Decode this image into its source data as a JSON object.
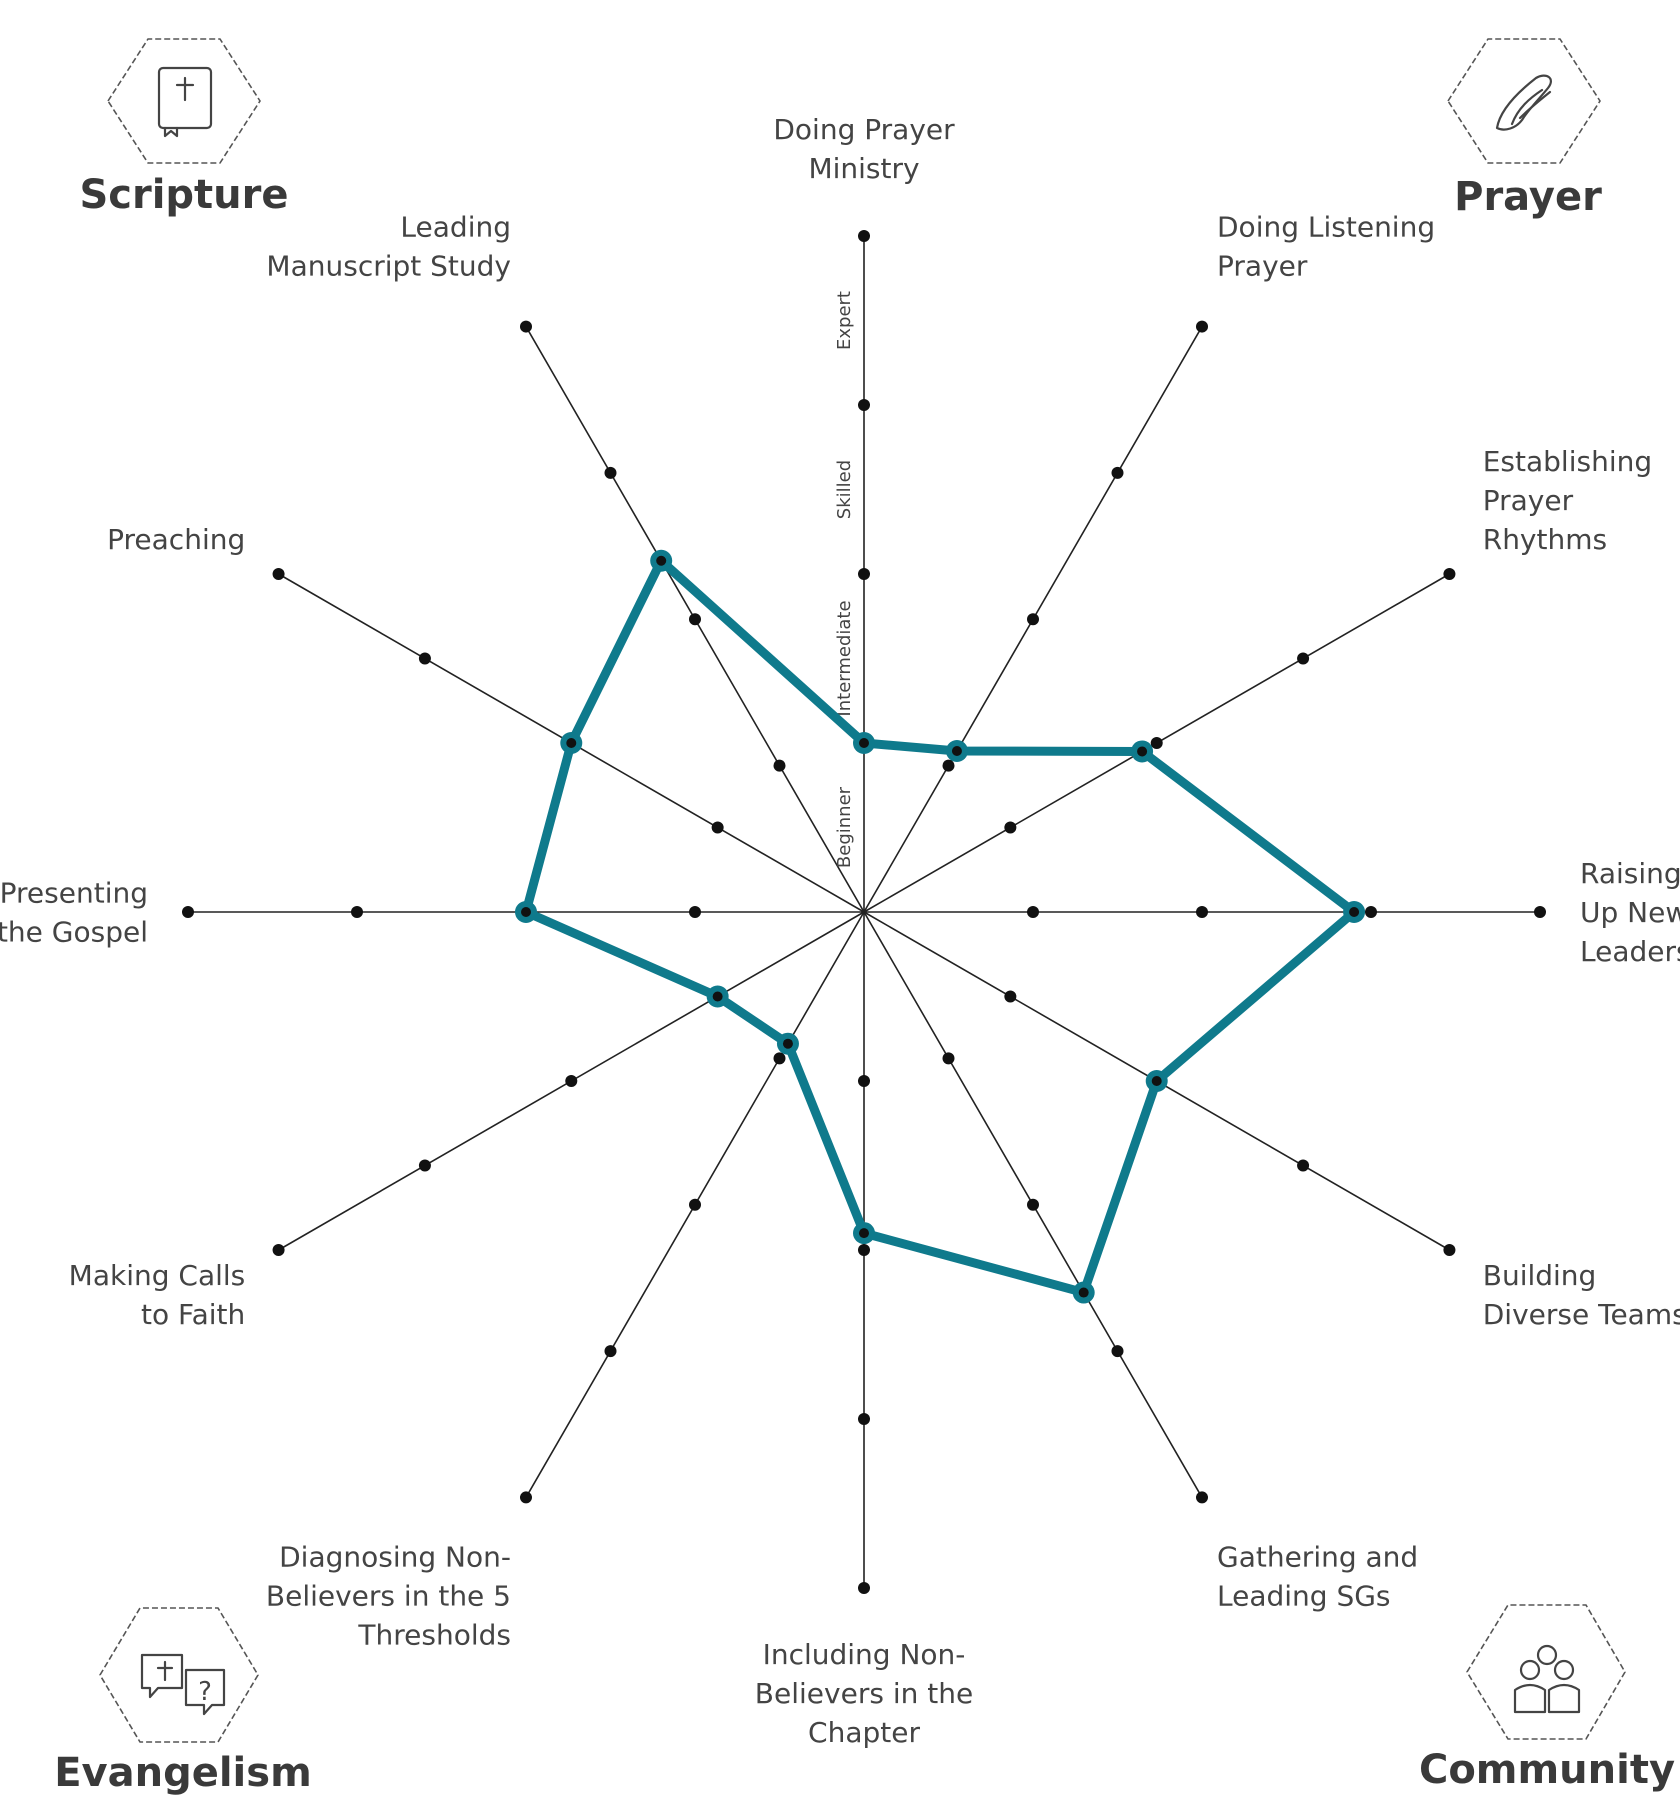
{
  "colors": {
    "series": "#0f7a8c",
    "axis": "#222222",
    "text": "#444444"
  },
  "corners": {
    "top_left": {
      "title": "Scripture",
      "icon": "bible-icon"
    },
    "top_right": {
      "title": "Prayer",
      "icon": "praying-hands-icon"
    },
    "bottom_left": {
      "title": "Evangelism",
      "icon": "speech-bubbles-icon",
      "icon_text": "?"
    },
    "bottom_right": {
      "title": "Community",
      "icon": "people-group-icon"
    }
  },
  "chart_data": {
    "type": "radar",
    "axes": [
      {
        "label": [
          "Doing Prayer",
          "Ministry"
        ]
      },
      {
        "label": [
          "Doing Listening",
          "Prayer"
        ]
      },
      {
        "label": [
          "Establishing",
          "Prayer",
          "Rhythms"
        ]
      },
      {
        "label": [
          "Raising",
          "Up New",
          "Leaders"
        ]
      },
      {
        "label": [
          "Building",
          "Diverse Teams"
        ]
      },
      {
        "label": [
          "Gathering and",
          "Leading SGs"
        ]
      },
      {
        "label": [
          "Including Non-",
          "Believers in the",
          "Chapter"
        ]
      },
      {
        "label": [
          "Diagnosing Non-",
          "Believers in the 5",
          "Thresholds"
        ]
      },
      {
        "label": [
          "Making Calls",
          "to Faith"
        ]
      },
      {
        "label": [
          "Presenting",
          "the Gospel"
        ]
      },
      {
        "label": [
          "Preaching"
        ]
      },
      {
        "label": [
          "Leading",
          "Manuscript Study"
        ]
      }
    ],
    "levels": [
      "Beginner",
      "Intermediate",
      "Skilled",
      "Expert"
    ],
    "scale_max": 4,
    "series": [
      {
        "values": [
          1.0,
          1.1,
          1.9,
          2.9,
          2.0,
          2.6,
          1.9,
          0.9,
          1.0,
          2.0,
          2.0,
          2.4
        ]
      }
    ]
  }
}
